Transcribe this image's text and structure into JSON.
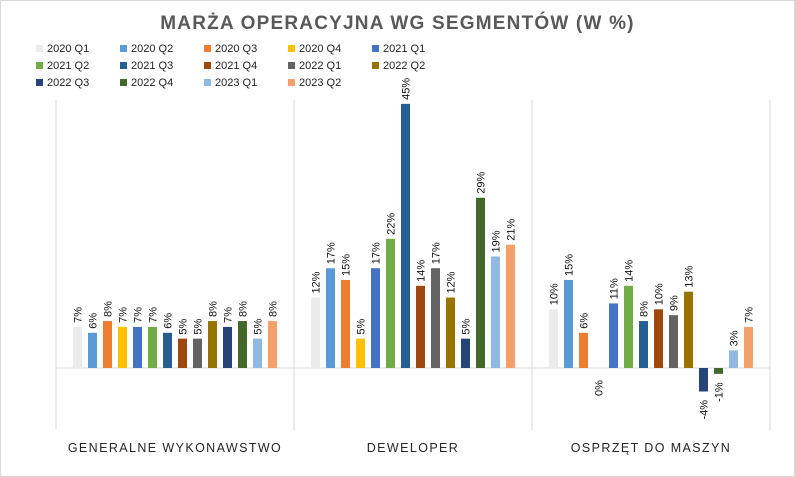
{
  "chart_data": {
    "type": "bar",
    "title": "MARŻA OPERACYJNA WG SEGMENTÓW (W %)",
    "categories": [
      "GENERALNE WYKONAWSTWO",
      "DEWELOPER",
      "OSPRZĘT DO MASZYN"
    ],
    "ylim": [
      -6,
      48
    ],
    "grid": false,
    "legend_position": "top-left",
    "series": [
      {
        "name": "2020 Q1",
        "color": "#ebebeb",
        "values": [
          7,
          12,
          10
        ]
      },
      {
        "name": "2020 Q2",
        "color": "#5b9bd5",
        "values": [
          6,
          17,
          15
        ]
      },
      {
        "name": "2020 Q3",
        "color": "#ed7d31",
        "values": [
          8,
          15,
          6
        ]
      },
      {
        "name": "2020 Q4",
        "color": "#ffc000",
        "values": [
          7,
          5,
          0
        ]
      },
      {
        "name": "2021 Q1",
        "color": "#4472c4",
        "values": [
          7,
          17,
          11
        ]
      },
      {
        "name": "2021 Q2",
        "color": "#70ad47",
        "values": [
          7,
          22,
          14
        ]
      },
      {
        "name": "2021 Q3",
        "color": "#255e91",
        "values": [
          6,
          45,
          8
        ]
      },
      {
        "name": "2021 Q4",
        "color": "#9e480e",
        "values": [
          5,
          14,
          10
        ]
      },
      {
        "name": "2022 Q1",
        "color": "#636363",
        "values": [
          5,
          17,
          9
        ]
      },
      {
        "name": "2022 Q2",
        "color": "#997300",
        "values": [
          8,
          12,
          13
        ]
      },
      {
        "name": "2022 Q3",
        "color": "#264478",
        "values": [
          7,
          5,
          -4
        ]
      },
      {
        "name": "2022 Q4",
        "color": "#43682b",
        "values": [
          8,
          29,
          -1
        ]
      },
      {
        "name": "2023 Q1",
        "color": "#8fb9e3",
        "values": [
          5,
          19,
          3
        ]
      },
      {
        "name": "2023 Q2",
        "color": "#f4a06b",
        "values": [
          8,
          21,
          7
        ]
      }
    ],
    "data_labels": [
      [
        "7%",
        "6%",
        "8%",
        "7%",
        "7%",
        "7%",
        "6%",
        "5%",
        "5%",
        "8%",
        "7%",
        "8%",
        "5%",
        "8%"
      ],
      [
        "12%",
        "17%",
        "15%",
        "5%",
        "17%",
        "22%",
        "45%",
        "14%",
        "17%",
        "12%",
        "5%",
        "29%",
        "19%",
        "21%"
      ],
      [
        "10%",
        "15%",
        "6%",
        "0%",
        "11%",
        "14%",
        "8%",
        "10%",
        "9%",
        "13%",
        "-4%",
        "-1%",
        "3%",
        "7%"
      ]
    ]
  }
}
